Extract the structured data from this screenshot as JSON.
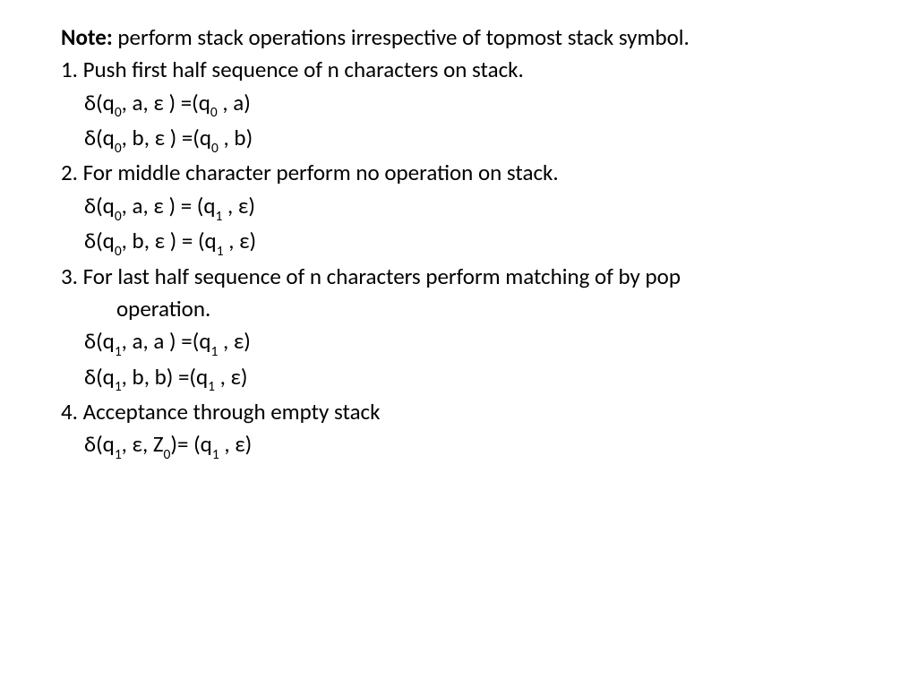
{
  "note": {
    "label": "Note:",
    "text": " perform stack operations irrespective of topmost stack symbol."
  },
  "items": [
    {
      "heading": "1. Push first half sequence of n characters on stack.",
      "transitions": [
        {
          "pre_state": "δ(q",
          "state_sub": "0",
          "mid": ", a, ε ) =(q",
          "res_sub": "0",
          "post": " , a)"
        },
        {
          "pre_state": "δ(q",
          "state_sub": "0",
          "mid": ", b, ε ) =(q",
          "res_sub": "0",
          "post": " , b)"
        }
      ]
    },
    {
      "heading": "2. For middle character perform no operation on stack.",
      "transitions": [
        {
          "pre_state": "δ(q",
          "state_sub": "0",
          "mid": ", a, ε ) =  (q",
          "res_sub": "1",
          "post": " , ε)"
        },
        {
          "pre_state": "δ(q",
          "state_sub": "0",
          "mid": ", b, ε ) = (q",
          "res_sub": "1",
          "post": " , ε)"
        }
      ]
    },
    {
      "heading": "3. For last half sequence of n characters perform matching of  by pop",
      "cont": "operation.",
      "transitions": [
        {
          "pre_state": "δ(q",
          "state_sub": "1",
          "mid": ", a, a ) =(q",
          "res_sub": "1",
          "post": " , ε)"
        },
        {
          "pre_state": "δ(q",
          "state_sub": "1",
          "mid": ", b, b) =(q",
          "res_sub": "1",
          "post": " , ε)"
        }
      ]
    },
    {
      "heading": "4. Acceptance through empty stack",
      "transitions": [
        {
          "pre_state": " δ(q",
          "state_sub": "1",
          "mid": ", ε, Z",
          "z_sub": "0",
          "mid2": ")= (q",
          "res_sub": "1",
          "post": " , ε)"
        }
      ]
    }
  ]
}
